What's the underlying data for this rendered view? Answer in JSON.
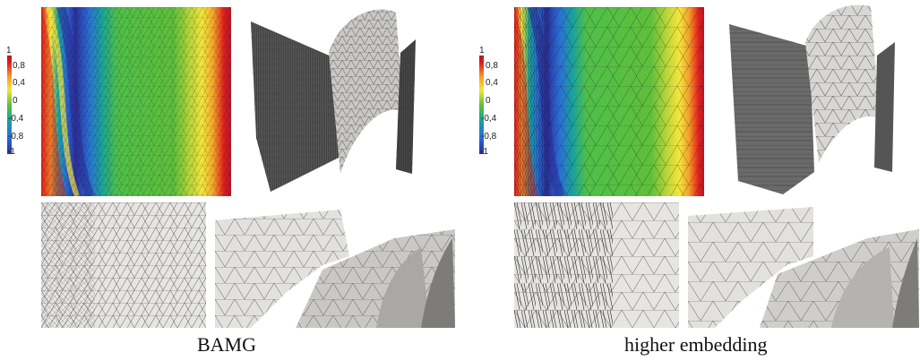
{
  "colorbar": {
    "ticks": [
      "1",
      "0,8",
      "0,4",
      "0",
      "-0,4",
      "-0,8",
      "-1"
    ],
    "colors": [
      "#b2182b",
      "#e2201e",
      "#f4a02a",
      "#f6e53b",
      "#5fbf3a",
      "#1aa39a",
      "#2a6fd6",
      "#2b2f9a"
    ]
  },
  "panels": [
    {
      "caption": "BAMG"
    },
    {
      "caption": "higher embedding"
    }
  ],
  "mesh_colors": {
    "surface": "#d9d8d4",
    "dark": "#4a4a4a",
    "edge": "#222222"
  }
}
